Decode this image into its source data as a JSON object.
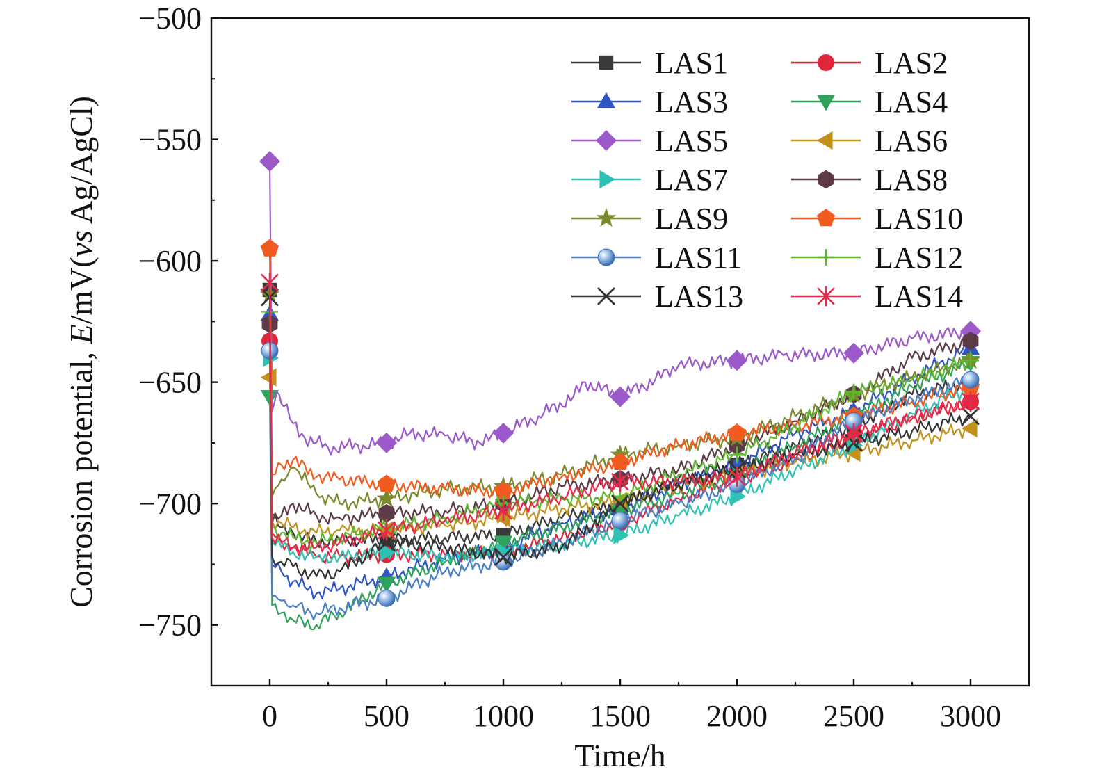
{
  "chart_data": {
    "type": "line",
    "xlabel": "Time/h",
    "ylabel": {
      "prefix": "Corrosion potential, ",
      "symbol": "E",
      "mid": "/mV(",
      "vs": "vs",
      "suffix": " Ag/AgCl)"
    },
    "xlim": [
      -250,
      3250
    ],
    "ylim": [
      -775,
      -500
    ],
    "xticks": [
      0,
      500,
      1000,
      1500,
      2000,
      2500,
      3000
    ],
    "yticks": [
      -500,
      -550,
      -600,
      -650,
      -700,
      -750
    ],
    "xtick_labels": [
      "0",
      "500",
      "1000",
      "1500",
      "2000",
      "2500",
      "3000"
    ],
    "ytick_labels": [
      "−500",
      "−550",
      "−600",
      "−650",
      "−700",
      "−750"
    ],
    "grid": false,
    "legend_position": "top-right",
    "series": [
      {
        "name": "LAS1",
        "color": "#3a3a3a",
        "marker": "square",
        "x": [
          0,
          10,
          50,
          100,
          200,
          300,
          500,
          750,
          1000,
          1250,
          1500,
          1750,
          2000,
          2250,
          2500,
          2750,
          3000
        ],
        "y": [
          -612,
          -705,
          -710,
          -712,
          -716,
          -715,
          -715,
          -714,
          -713,
          -706,
          -700,
          -690,
          -684,
          -676,
          -668,
          -655,
          -650
        ]
      },
      {
        "name": "LAS2",
        "color": "#e0263a",
        "marker": "circle",
        "x": [
          0,
          10,
          50,
          100,
          200,
          300,
          500,
          750,
          1000,
          1250,
          1500,
          1750,
          2000,
          2250,
          2500,
          2750,
          3000
        ],
        "y": [
          -633,
          -712,
          -716,
          -718,
          -722,
          -722,
          -721,
          -721,
          -720,
          -714,
          -708,
          -698,
          -690,
          -682,
          -673,
          -665,
          -658
        ]
      },
      {
        "name": "LAS3",
        "color": "#2f55c4",
        "marker": "triangle-up",
        "x": [
          0,
          10,
          50,
          100,
          200,
          300,
          500,
          750,
          1000,
          1250,
          1500,
          1750,
          2000,
          2250,
          2500,
          2750,
          3000
        ],
        "y": [
          -622,
          -725,
          -728,
          -732,
          -737,
          -735,
          -730,
          -723,
          -718,
          -708,
          -702,
          -692,
          -684,
          -671,
          -662,
          -648,
          -636
        ]
      },
      {
        "name": "LAS4",
        "color": "#2fa35b",
        "marker": "triangle-down",
        "x": [
          0,
          10,
          50,
          100,
          200,
          300,
          500,
          750,
          1000,
          1250,
          1500,
          1750,
          2000,
          2250,
          2500,
          2750,
          3000
        ],
        "y": [
          -656,
          -742,
          -745,
          -748,
          -750,
          -745,
          -733,
          -724,
          -716,
          -710,
          -703,
          -696,
          -688,
          -676,
          -664,
          -652,
          -642
        ]
      },
      {
        "name": "LAS5",
        "color": "#9b59c9",
        "marker": "diamond",
        "x": [
          0,
          10,
          30,
          60,
          100,
          150,
          250,
          400,
          500,
          600,
          750,
          900,
          1000,
          1150,
          1300,
          1350,
          1500,
          1650,
          1750,
          2000,
          2200,
          2500,
          2750,
          3000
        ],
        "y": [
          -559,
          -662,
          -654,
          -660,
          -667,
          -673,
          -677,
          -676,
          -675,
          -671,
          -672,
          -675,
          -671,
          -664,
          -656,
          -650,
          -656,
          -649,
          -643,
          -641,
          -639,
          -638,
          -632,
          -629
        ]
      },
      {
        "name": "LAS6",
        "color": "#c2921d",
        "marker": "triangle-left",
        "x": [
          0,
          10,
          50,
          100,
          200,
          300,
          500,
          750,
          1000,
          1250,
          1500,
          1750,
          2000,
          2250,
          2500,
          2750,
          3000
        ],
        "y": [
          -648,
          -707,
          -708,
          -710,
          -712,
          -711,
          -711,
          -709,
          -706,
          -702,
          -699,
          -693,
          -688,
          -683,
          -679,
          -674,
          -669
        ]
      },
      {
        "name": "LAS7",
        "color": "#2fc1b3",
        "marker": "triangle-right",
        "x": [
          0,
          10,
          50,
          100,
          200,
          300,
          500,
          750,
          1000,
          1250,
          1500,
          1750,
          2000,
          2250,
          2500,
          2750,
          3000
        ],
        "y": [
          -640,
          -716,
          -718,
          -720,
          -722,
          -722,
          -720,
          -722,
          -720,
          -717,
          -713,
          -705,
          -697,
          -686,
          -676,
          -663,
          -652
        ]
      },
      {
        "name": "LAS8",
        "color": "#5c3a46",
        "marker": "hexagon",
        "x": [
          0,
          10,
          50,
          100,
          200,
          300,
          500,
          750,
          1000,
          1250,
          1500,
          1750,
          2000,
          2250,
          2500,
          2750,
          3000
        ],
        "y": [
          -626,
          -708,
          -705,
          -700,
          -705,
          -706,
          -704,
          -703,
          -700,
          -693,
          -690,
          -686,
          -676,
          -666,
          -655,
          -640,
          -633
        ]
      },
      {
        "name": "LAS9",
        "color": "#7a8a2a",
        "marker": "star",
        "x": [
          0,
          10,
          50,
          100,
          200,
          300,
          500,
          750,
          1000,
          1250,
          1500,
          1750,
          2000,
          2250,
          2500,
          2750,
          3000
        ],
        "y": [
          -614,
          -697,
          -690,
          -685,
          -696,
          -700,
          -698,
          -694,
          -693,
          -688,
          -680,
          -676,
          -673,
          -664,
          -655,
          -648,
          -641
        ]
      },
      {
        "name": "LAS10",
        "color": "#f25a1f",
        "marker": "pentagon",
        "x": [
          0,
          10,
          50,
          100,
          200,
          300,
          500,
          750,
          1000,
          1250,
          1500,
          1750,
          2000,
          2250,
          2500,
          2750,
          3000
        ],
        "y": [
          -595,
          -688,
          -684,
          -682,
          -689,
          -690,
          -692,
          -694,
          -695,
          -689,
          -683,
          -676,
          -671,
          -668,
          -664,
          -658,
          -652
        ]
      },
      {
        "name": "LAS11",
        "color": "#4a7fc6",
        "marker": "sphere",
        "x": [
          0,
          10,
          50,
          100,
          200,
          300,
          500,
          750,
          1000,
          1250,
          1500,
          1750,
          2000,
          2250,
          2500,
          2750,
          3000
        ],
        "y": [
          -637,
          -738,
          -740,
          -742,
          -745,
          -743,
          -739,
          -728,
          -724,
          -716,
          -707,
          -700,
          -692,
          -681,
          -666,
          -657,
          -649
        ]
      },
      {
        "name": "LAS12",
        "color": "#5cb82c",
        "marker": "plus",
        "x": [
          0,
          10,
          50,
          100,
          200,
          300,
          500,
          750,
          1000,
          1250,
          1500,
          1750,
          2000,
          2250,
          2500,
          2750,
          3000
        ],
        "y": [
          -621,
          -710,
          -712,
          -714,
          -716,
          -714,
          -710,
          -706,
          -700,
          -698,
          -697,
          -688,
          -680,
          -668,
          -654,
          -649,
          -641
        ]
      },
      {
        "name": "LAS13",
        "color": "#333333",
        "marker": "x",
        "x": [
          0,
          10,
          50,
          100,
          200,
          300,
          500,
          750,
          1000,
          1250,
          1500,
          1750,
          2000,
          2250,
          2500,
          2750,
          3000
        ],
        "y": [
          -615,
          -722,
          -724,
          -726,
          -730,
          -728,
          -716,
          -718,
          -722,
          -718,
          -700,
          -692,
          -686,
          -680,
          -675,
          -670,
          -664
        ]
      },
      {
        "name": "LAS14",
        "color": "#e8294b",
        "marker": "asterisk",
        "x": [
          0,
          10,
          50,
          100,
          200,
          300,
          500,
          750,
          1000,
          1250,
          1500,
          1750,
          2000,
          2250,
          2500,
          2750,
          3000
        ],
        "y": [
          -609,
          -714,
          -716,
          -718,
          -718,
          -716,
          -711,
          -707,
          -703,
          -697,
          -691,
          -691,
          -689,
          -679,
          -671,
          -664,
          -658
        ]
      }
    ]
  }
}
